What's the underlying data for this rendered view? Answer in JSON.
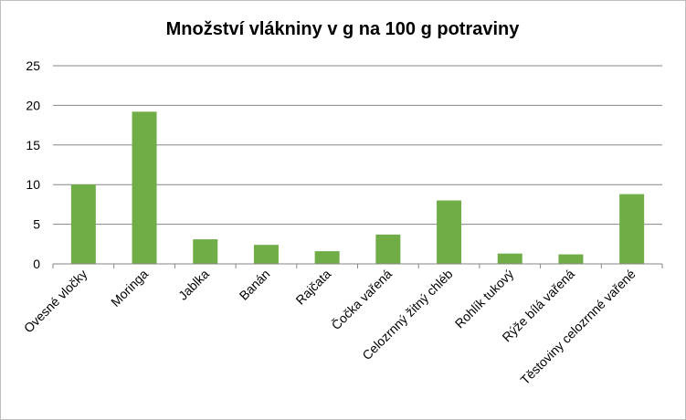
{
  "chart_data": {
    "type": "bar",
    "title": "Množství vlákniny v g na 100 g potraviny",
    "xlabel": "",
    "ylabel": "",
    "categories": [
      "Ovesné vločky",
      "Moringa",
      "Jablka",
      "Banán",
      "Rajčata",
      "Čočka vařená",
      "Celozrnný žitný chléb",
      "Rohlík tukový",
      "Rýže bílá vařená",
      "Těstoviny celozrnné vařené"
    ],
    "values": [
      10,
      19.2,
      3.1,
      2.4,
      1.6,
      3.7,
      8,
      1.3,
      1.2,
      8.8
    ],
    "ylim": [
      0,
      25
    ],
    "yticks": [
      0,
      5,
      10,
      15,
      20,
      25
    ],
    "grid": true,
    "bar_color": "#70ad47"
  }
}
